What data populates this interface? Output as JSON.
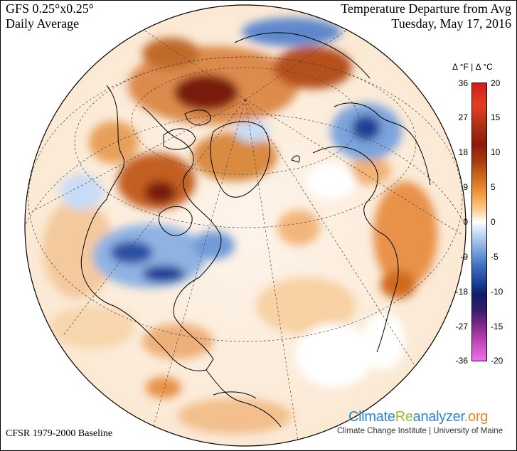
{
  "header": {
    "model": "GFS 0.25°x0.25°",
    "period": "Daily Average",
    "title": "Temperature Departure from Avg",
    "date": "Tuesday, May 17, 2016"
  },
  "footer": {
    "baseline": "CFSR 1979-2000 Baseline",
    "brand_parts": [
      "Climate",
      "Re",
      "analyzer",
      ".org"
    ],
    "institute": "Climate Change Institute | University of Maine"
  },
  "colorbar": {
    "title": "Δ °F  |  Δ °C",
    "fahrenheit_ticks": [
      "36",
      "27",
      "18",
      "9",
      "0",
      "-9",
      "-18",
      "-27",
      "-36"
    ],
    "celsius_ticks": [
      "20",
      "15",
      "10",
      "5",
      "0",
      "-5",
      "-10",
      "-15",
      "-20"
    ],
    "range_f": [
      -36,
      36
    ],
    "range_c": [
      -20,
      20
    ]
  },
  "colors": {
    "warm_strong": "#8c1a0a",
    "warm": "#d06a1f",
    "warm_light": "#fbd49a",
    "cool_light": "#c7dcf5",
    "cool": "#3d6ec0",
    "cool_strong": "#1c3f96",
    "ocean_neutral": "#ffffff"
  }
}
